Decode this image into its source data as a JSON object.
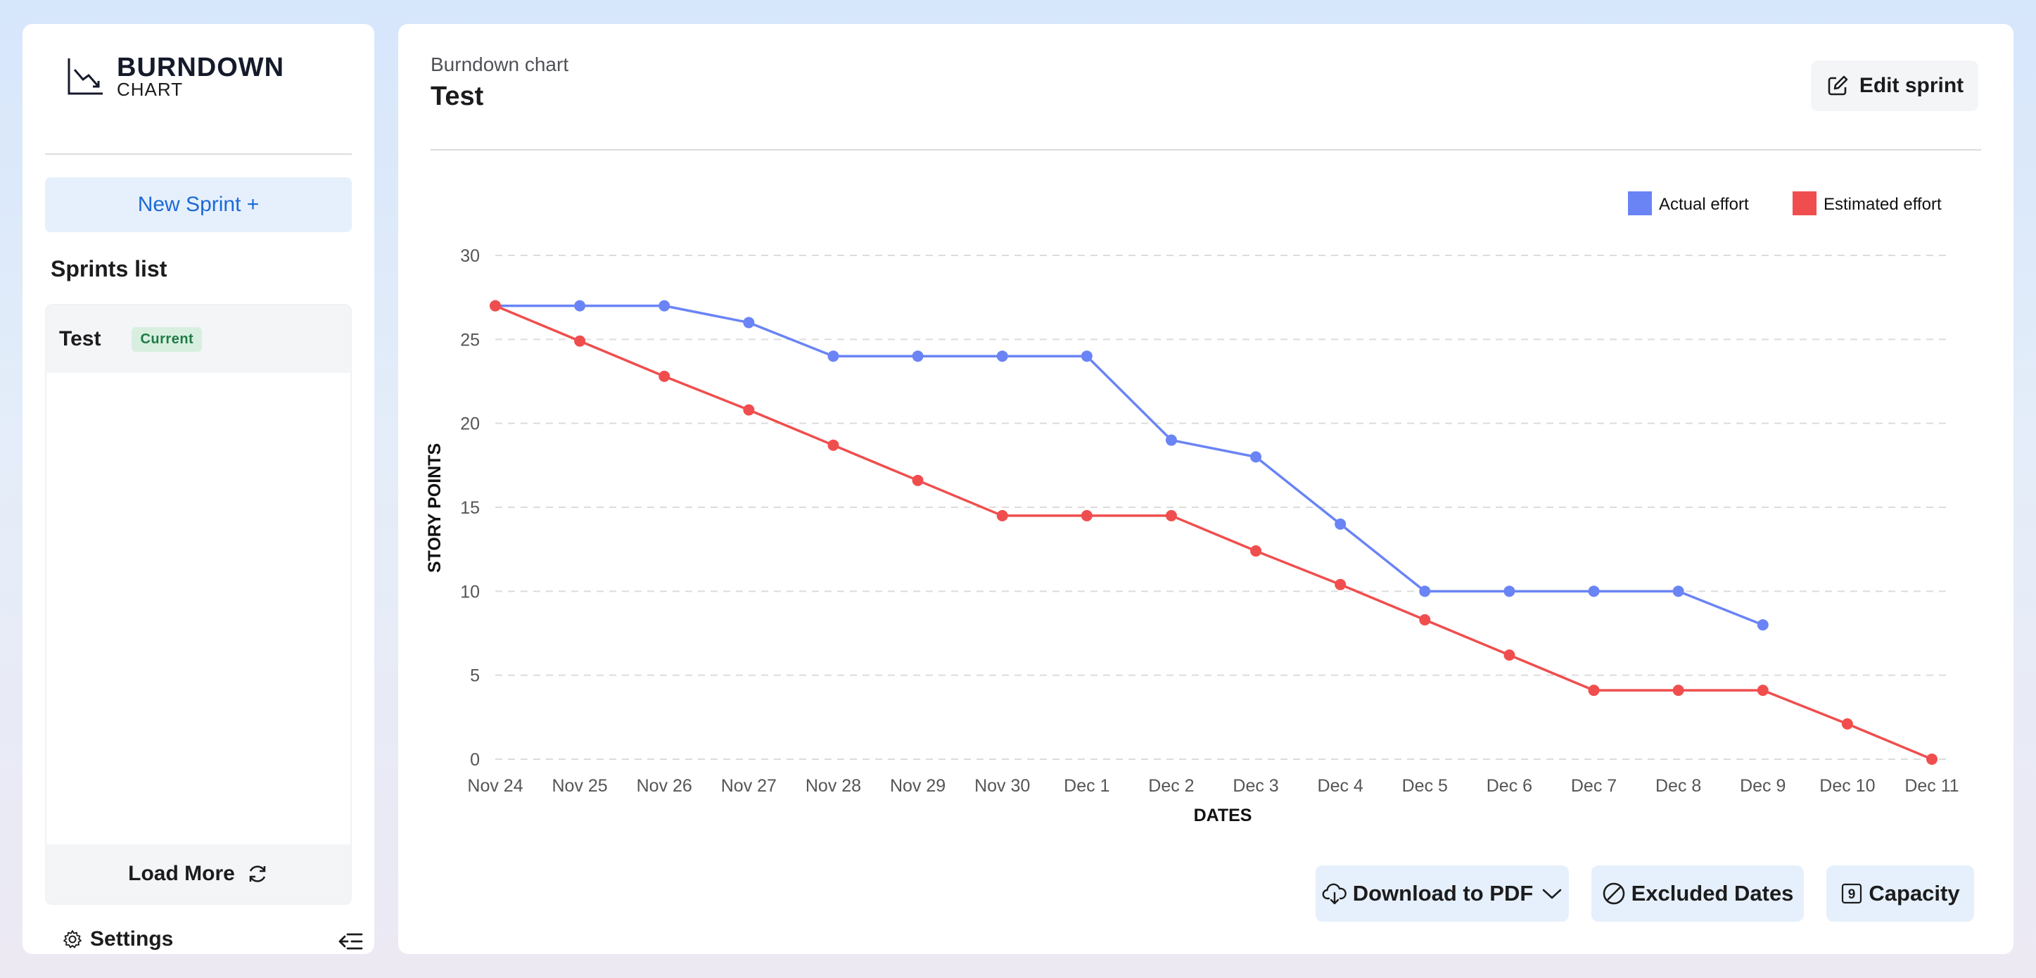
{
  "sidebar": {
    "logo": {
      "title": "BURNDOWN",
      "subtitle": "CHART"
    },
    "new_sprint_label": "New Sprint +",
    "sprints_title": "Sprints list",
    "sprints": [
      {
        "name": "Test",
        "badge": "Current"
      }
    ],
    "load_more_label": "Load More",
    "settings_label": "Settings"
  },
  "main": {
    "subtitle": "Burndown chart",
    "title": "Test",
    "edit_label": "Edit sprint",
    "buttons": {
      "download_pdf": "Download to PDF",
      "excluded_dates": "Excluded Dates",
      "capacity": "Capacity",
      "capacity_icon_text": "9"
    }
  },
  "colors": {
    "actual": "#6a84f5",
    "estimated": "#f04e4e",
    "accent": "#1c6ad8"
  },
  "chart_data": {
    "type": "line",
    "xlabel": "DATES",
    "ylabel": "STORY POINTS",
    "categories": [
      "Nov 24",
      "Nov 25",
      "Nov 26",
      "Nov 27",
      "Nov 28",
      "Nov 29",
      "Nov 30",
      "Dec 1",
      "Dec 2",
      "Dec 3",
      "Dec 4",
      "Dec 5",
      "Dec 6",
      "Dec 7",
      "Dec 8",
      "Dec 9",
      "Dec 10",
      "Dec 11"
    ],
    "ylim": [
      0,
      30
    ],
    "yticks": [
      0,
      5,
      10,
      15,
      20,
      25,
      30
    ],
    "grid": true,
    "legend_position": "top-right",
    "series": [
      {
        "name": "Actual effort",
        "color": "#6a84f5",
        "values": [
          27,
          27,
          27,
          26,
          24,
          24,
          24,
          24,
          19,
          18,
          14,
          10,
          10,
          10,
          10,
          8,
          null,
          null
        ]
      },
      {
        "name": "Estimated effort",
        "color": "#f04e4e",
        "values": [
          27,
          24.9,
          22.8,
          20.8,
          18.7,
          16.6,
          14.5,
          14.5,
          14.5,
          12.4,
          10.4,
          8.3,
          6.2,
          4.1,
          4.1,
          4.1,
          2.1,
          0
        ]
      }
    ]
  }
}
